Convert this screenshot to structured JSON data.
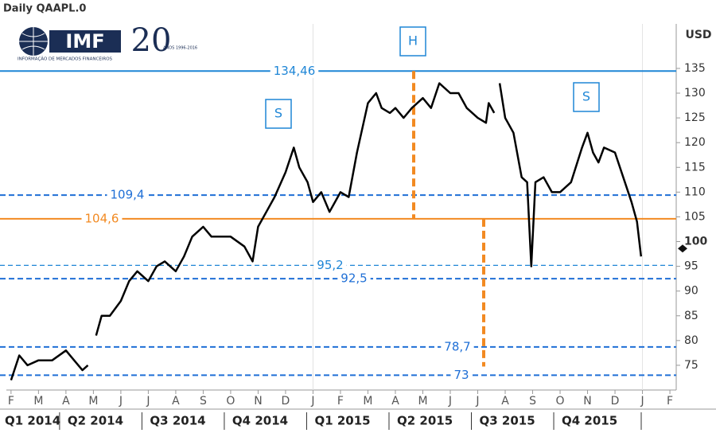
{
  "chart_data": {
    "type": "line",
    "title": "Daily QAAPL.0",
    "y_axis_label": "USD",
    "logo": {
      "brand": "IMF",
      "number": "20",
      "tagline": "INFORMAÇÃO DE MERCADOS FINANCEIROS",
      "years": "ANOS 1996-2016"
    },
    "xlim": [
      -0.17,
      24.23
    ],
    "xticks": [
      {
        "value": 0,
        "label": "F"
      },
      {
        "value": 1,
        "label": "M"
      },
      {
        "value": 2,
        "label": "A"
      },
      {
        "value": 3,
        "label": "M"
      },
      {
        "value": 4,
        "label": "J"
      },
      {
        "value": 5,
        "label": "J"
      },
      {
        "value": 6,
        "label": "A"
      },
      {
        "value": 7,
        "label": "S"
      },
      {
        "value": 8,
        "label": "O"
      },
      {
        "value": 9,
        "label": "N"
      },
      {
        "value": 10,
        "label": "D"
      },
      {
        "value": 11,
        "label": "J"
      },
      {
        "value": 12,
        "label": "F"
      },
      {
        "value": 13,
        "label": "M"
      },
      {
        "value": 14,
        "label": "A"
      },
      {
        "value": 15,
        "label": "M"
      },
      {
        "value": 16,
        "label": "J"
      },
      {
        "value": 17,
        "label": "J"
      },
      {
        "value": 18,
        "label": "A"
      },
      {
        "value": 19,
        "label": "S"
      },
      {
        "value": 20,
        "label": "O"
      },
      {
        "value": 21,
        "label": "N"
      },
      {
        "value": 22,
        "label": "D"
      },
      {
        "value": 23,
        "label": "J"
      },
      {
        "value": 24,
        "label": "F"
      }
    ],
    "quarters": [
      {
        "value": -1,
        "label": "Q1 2014"
      },
      {
        "value": 2,
        "label": "Q2 2014"
      },
      {
        "value": 5,
        "label": "Q3 2014"
      },
      {
        "value": 8,
        "label": "Q4 2014"
      },
      {
        "value": 11,
        "label": "Q1 2015"
      },
      {
        "value": 14,
        "label": "Q2 2015"
      },
      {
        "value": 17,
        "label": "Q3 2015"
      },
      {
        "value": 20,
        "label": "Q4 2015"
      }
    ],
    "ylim": [
      70,
      144
    ],
    "yticks": [
      75,
      80,
      85,
      90,
      95,
      100,
      105,
      110,
      115,
      120,
      125,
      130,
      135
    ],
    "series": [
      {
        "name": "QAAPL.0",
        "color": "#000000",
        "x": [
          0,
          0.3,
          0.6,
          1,
          1.5,
          2,
          2.3,
          2.6,
          2.8,
          2.95,
          3.1,
          3.3,
          3.6,
          4,
          4.3,
          4.6,
          5,
          5.3,
          5.6,
          6,
          6.3,
          6.6,
          7,
          7.3,
          7.6,
          8,
          8.5,
          8.8,
          9,
          9.3,
          9.6,
          10,
          10.3,
          10.5,
          10.8,
          11,
          11.3,
          11.6,
          12,
          12.3,
          12.6,
          13,
          13.3,
          13.5,
          13.8,
          14,
          14.3,
          14.6,
          15,
          15.3,
          15.6,
          16,
          16.3,
          16.6,
          17,
          17.3,
          17.4,
          17.6,
          17.7,
          17.8,
          18,
          18.3,
          18.6,
          18.8,
          18.95,
          19.1,
          19.4,
          19.7,
          20,
          20.4,
          20.8,
          21,
          21.2,
          21.4,
          21.6,
          22,
          22.3,
          22.6,
          22.8,
          22.95
        ],
        "values": [
          72,
          77,
          75,
          76,
          76,
          78,
          76,
          74,
          75,
          null,
          81,
          85,
          85,
          88,
          92,
          94,
          92,
          95,
          96,
          94,
          97,
          101,
          103,
          101,
          101,
          101,
          99,
          96,
          103,
          106,
          109,
          114,
          119,
          115,
          112,
          108,
          110,
          106,
          110,
          109,
          118,
          128,
          130,
          127,
          126,
          127,
          125,
          127,
          129,
          127,
          132,
          130,
          130,
          127,
          125,
          124,
          128,
          126,
          null,
          132,
          125,
          122,
          113,
          112,
          95,
          112,
          113,
          110,
          110,
          112,
          119,
          122,
          118,
          116,
          119,
          118,
          113,
          108,
          104,
          97
        ]
      }
    ],
    "last_price": 98.6,
    "levels": [
      {
        "value": 134.46,
        "label": "134,46",
        "color": "#1f86d6",
        "style": "solid"
      },
      {
        "value": 109.4,
        "label": "109,4",
        "color": "#1f6fd6",
        "style": "dashed"
      },
      {
        "value": 104.6,
        "label": "104,6",
        "color": "#f28a22",
        "style": "solid"
      },
      {
        "value": 95.2,
        "label": "95,2",
        "color": "#1f86d6",
        "style": "thin-dashed"
      },
      {
        "value": 92.5,
        "label": "92,5",
        "color": "#1f6fd6",
        "style": "dashed"
      },
      {
        "value": 78.7,
        "label": "78,7",
        "color": "#1f6fd6",
        "style": "dashed"
      },
      {
        "value": 73,
        "label": "73",
        "color": "#1f6fd6",
        "style": "dashed"
      }
    ],
    "annotations": [
      "S",
      "H",
      "S"
    ]
  }
}
